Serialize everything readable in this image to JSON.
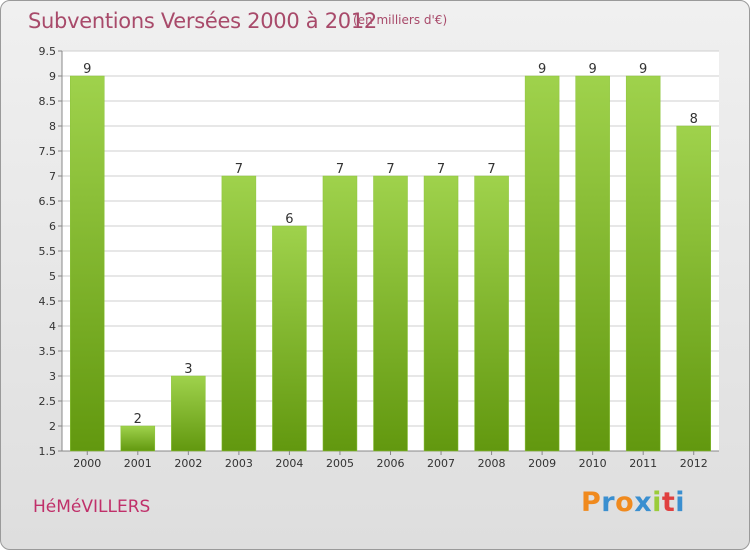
{
  "header": {
    "title": "Subventions Versées 2000 à 2012",
    "subtitle": "(en milliers d'€)"
  },
  "footer": {
    "commune": "HéMéVILLERS",
    "logo_text": "Proxiti"
  },
  "colors": {
    "bar_top": "#9fd24c",
    "bar_bottom": "#62980f",
    "grid": "#cfcfcf",
    "title": "#a84a6a"
  },
  "chart_data": {
    "type": "bar",
    "title": "Subventions Versées 2000 à 2012",
    "subtitle": "(en milliers d'€)",
    "categories": [
      "2000",
      "2001",
      "2002",
      "2003",
      "2004",
      "2005",
      "2006",
      "2007",
      "2008",
      "2009",
      "2010",
      "2011",
      "2012"
    ],
    "values": [
      9,
      2,
      3,
      7,
      6,
      7,
      7,
      7,
      7,
      9,
      9,
      9,
      8
    ],
    "ylim": [
      1.5,
      9.5
    ],
    "yticks": [
      1.5,
      2,
      2.5,
      3,
      3.5,
      4,
      4.5,
      5,
      5.5,
      6,
      6.5,
      7,
      7.5,
      8,
      8.5,
      9,
      9.5
    ],
    "ytick_labels": [
      "1.5",
      "2",
      "2.5",
      "3",
      "3.5",
      "4",
      "4.5",
      "5",
      "5.5",
      "6",
      "6.5",
      "7",
      "7.5",
      "8",
      "8.5",
      "9",
      "9.5"
    ],
    "grid": true,
    "data_labels": true
  }
}
